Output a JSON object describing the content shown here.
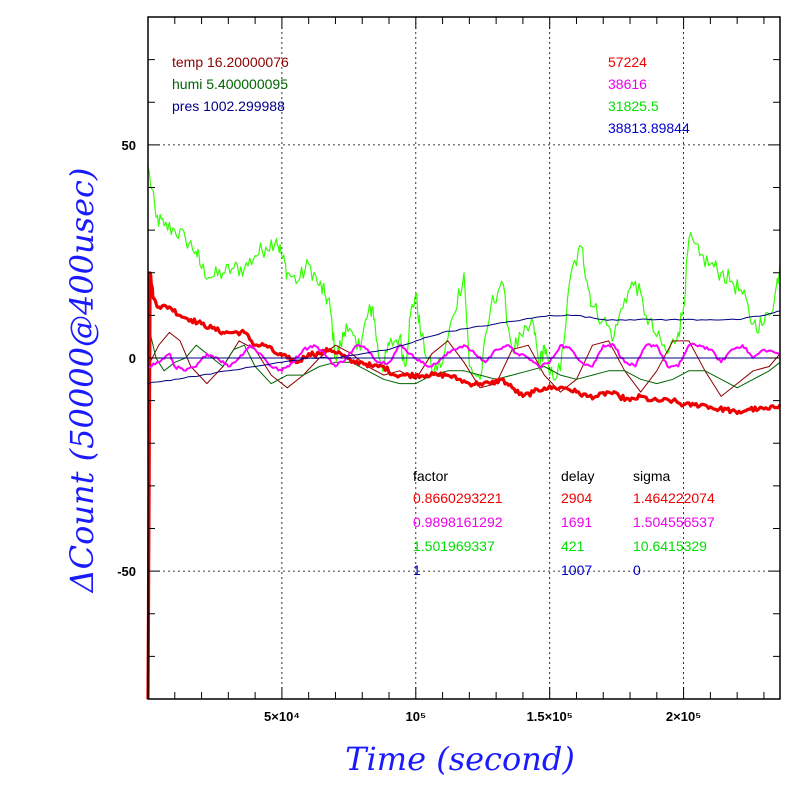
{
  "chart_data": {
    "type": "line",
    "xlabel": "Time (second)",
    "ylabel": "ΔCount (50000@400usec)",
    "xlim": [
      0,
      236000
    ],
    "ylim": [
      -80,
      80
    ],
    "x_ticks": [
      {
        "value": 50000,
        "label": "5×10⁴"
      },
      {
        "value": 100000,
        "label": "10⁵"
      },
      {
        "value": 150000,
        "label": "1.5×10⁵"
      },
      {
        "value": 200000,
        "label": "2×10⁵"
      }
    ],
    "y_ticks": [
      {
        "value": 50,
        "label": "50"
      },
      {
        "value": 0,
        "label": "0"
      },
      {
        "value": -50,
        "label": "-50"
      }
    ],
    "grid": true,
    "info_left": [
      {
        "text": "temp 16.20000076",
        "color": "#8b0000"
      },
      {
        "text": "humi 5.400000095",
        "color": "#006400"
      },
      {
        "text": "pres 1002.299988",
        "color": "#00008b"
      }
    ],
    "info_right": [
      {
        "text": "57224",
        "color": "#ee0000"
      },
      {
        "text": "38616",
        "color": "#ee00ee"
      },
      {
        "text": "31825.5",
        "color": "#00dd00"
      },
      {
        "text": "38813.89844",
        "color": "#0000cc"
      }
    ],
    "table": {
      "headers": [
        "factor",
        "delay",
        "sigma"
      ],
      "rows": [
        {
          "factor": "0.8660293221",
          "delay": "2904",
          "sigma": "1.464222074",
          "color": "#ee0000"
        },
        {
          "factor": "0.9898161292",
          "delay": "1691",
          "sigma": "1.504556537",
          "color": "#ee00ee"
        },
        {
          "factor": "1.501969337",
          "delay": "421",
          "sigma": "10.6415329",
          "color": "#00dd00"
        },
        {
          "factor": "1",
          "delay": "1007",
          "sigma": "0",
          "color": "#0000cc"
        }
      ]
    },
    "series": [
      {
        "color": "#33ff00",
        "width": 1.2,
        "noise": 2.2,
        "x": [
          0,
          3000,
          6000,
          10000,
          14000,
          18000,
          20000,
          24000,
          28000,
          32000,
          36000,
          40000,
          44000,
          48000,
          50000,
          52000,
          56000,
          60000,
          64000,
          66000,
          68000,
          70000,
          72000,
          74000,
          78000,
          80000,
          82000,
          84000,
          86000,
          88000,
          90000,
          94000,
          96000,
          98000,
          100000,
          102000,
          106000,
          110000,
          114000,
          118000,
          120000,
          124000,
          128000,
          132000,
          136000,
          140000,
          144000,
          146000,
          148000,
          150000,
          154000,
          158000,
          162000,
          164000,
          166000,
          170000,
          174000,
          178000,
          182000,
          186000,
          190000,
          194000,
          198000,
          200000,
          202000,
          206000,
          210000,
          214000,
          218000,
          222000,
          226000,
          230000,
          234000,
          236000
        ],
        "y": [
          45,
          33,
          31,
          30,
          28,
          25,
          21,
          19,
          20,
          21,
          21,
          24,
          26,
          28,
          24,
          20,
          18,
          22,
          17,
          15,
          12,
          0,
          3,
          8,
          2,
          5,
          10,
          12,
          1,
          -2,
          3,
          5,
          -2,
          10,
          15,
          5,
          -3,
          -1,
          10,
          20,
          -2,
          -5,
          12,
          18,
          2,
          5,
          8,
          -2,
          3,
          -4,
          -3,
          20,
          26,
          18,
          12,
          9,
          5,
          14,
          18,
          10,
          5,
          1,
          6,
          12,
          28,
          24,
          22,
          20,
          18,
          15,
          8,
          8,
          14,
          22
        ]
      },
      {
        "color": "#8b0000",
        "width": 1,
        "noise": 0,
        "x": [
          0,
          4000,
          8000,
          12000,
          16000,
          22000,
          28000,
          34000,
          40000,
          46000,
          52000,
          58000,
          64000,
          70000,
          76000,
          82000,
          88000,
          94000,
          100000,
          106000,
          112000,
          118000,
          124000,
          130000,
          136000,
          142000,
          148000,
          154000,
          160000,
          166000,
          172000,
          178000,
          184000,
          190000,
          196000,
          202000,
          208000,
          214000,
          220000,
          226000,
          232000,
          236000
        ],
        "y": [
          -2,
          3,
          6,
          4,
          -2,
          -6,
          -2,
          4,
          2,
          -4,
          -7,
          -4,
          0,
          3,
          1,
          -2,
          -4,
          -3,
          -5,
          1,
          4,
          -1,
          -7,
          -6,
          2,
          3,
          -4,
          -8,
          -5,
          3,
          4,
          -3,
          -8,
          -3,
          4,
          4,
          -3,
          -9,
          -6,
          -3,
          -2,
          1
        ]
      },
      {
        "color": "#006400",
        "width": 1,
        "noise": 0,
        "x": [
          0,
          3000,
          6000,
          10000,
          14000,
          18000,
          22000,
          28000,
          32000,
          36000,
          40000,
          46000,
          52000,
          58000,
          64000,
          70000,
          76000,
          82000,
          88000,
          94000,
          100000,
          106000,
          112000,
          118000,
          124000,
          130000,
          136000,
          142000,
          148000,
          154000,
          160000,
          166000,
          172000,
          178000,
          184000,
          190000,
          196000,
          202000,
          208000,
          214000,
          220000,
          226000,
          232000,
          236000
        ],
        "y": [
          8,
          0,
          -3,
          -1,
          0,
          3,
          1,
          -2,
          2,
          3,
          -2,
          -6,
          -4,
          -4,
          -2,
          -1,
          -1,
          -3,
          -5,
          -6,
          -6,
          -4,
          -3,
          -3,
          -4,
          -5,
          -4,
          -3,
          -2,
          -4,
          -5,
          -4,
          -3,
          -3,
          -5,
          -6,
          -5,
          -3,
          -3,
          -5,
          -7,
          -5,
          -3,
          -1
        ]
      },
      {
        "color": "#ee0000",
        "width": 3.2,
        "noise": 0.6,
        "x": [
          0,
          800,
          2000,
          4000,
          8000,
          12000,
          16000,
          20000,
          24000,
          28000,
          32000,
          36000,
          40000,
          44000,
          48000,
          52000,
          56000,
          60000,
          64000,
          68000,
          72000,
          76000,
          80000,
          84000,
          88000,
          92000,
          96000,
          100000,
          104000,
          108000,
          112000,
          116000,
          120000,
          124000,
          128000,
          132000,
          136000,
          140000,
          144000,
          148000,
          152000,
          156000,
          160000,
          164000,
          168000,
          172000,
          176000,
          180000,
          184000,
          188000,
          192000,
          196000,
          200000,
          204000,
          208000,
          212000,
          216000,
          220000,
          224000,
          228000,
          232000,
          236000
        ],
        "y": [
          -80,
          20,
          14,
          12,
          12,
          10,
          9,
          8,
          7,
          6,
          6,
          6,
          3,
          3,
          1,
          0,
          -1,
          1,
          1,
          2,
          1,
          -1,
          -1,
          -2,
          -2,
          -4,
          -4,
          -4,
          -4,
          -4,
          -4,
          -5,
          -6,
          -6,
          -6,
          -5,
          -7,
          -9,
          -8,
          -7,
          -7,
          -7,
          -8,
          -9,
          -9,
          -8,
          -9,
          -10,
          -9,
          -10,
          -10,
          -10,
          -11,
          -11,
          -11,
          -12,
          -12,
          -13,
          -12,
          -12,
          -12,
          -11
        ]
      },
      {
        "color": "#ff00ff",
        "width": 2,
        "noise": 0.4,
        "x": [
          0,
          4000,
          8000,
          10000,
          14000,
          18000,
          22000,
          26000,
          30000,
          34000,
          38000,
          42000,
          46000,
          50000,
          54000,
          58000,
          62000,
          66000,
          70000,
          74000,
          78000,
          82000,
          86000,
          90000,
          94000,
          98000,
          102000,
          106000,
          110000,
          114000,
          118000,
          122000,
          126000,
          130000,
          134000,
          138000,
          142000,
          146000,
          150000,
          154000,
          158000,
          162000,
          166000,
          170000,
          174000,
          178000,
          182000,
          186000,
          190000,
          194000,
          198000,
          202000,
          206000,
          210000,
          214000,
          218000,
          222000,
          226000,
          230000,
          236000
        ],
        "y": [
          -2,
          -1,
          1,
          -2,
          -3,
          -2,
          1,
          0,
          -2,
          0,
          3,
          1,
          -2,
          -3,
          -1,
          2,
          3,
          1,
          -2,
          0,
          3,
          2,
          -1,
          -1,
          3,
          1,
          -1,
          -2,
          0,
          2,
          3,
          1,
          -1,
          2,
          3,
          1,
          0,
          -2,
          -1,
          3,
          2,
          -1,
          -2,
          3,
          3,
          -1,
          -2,
          3,
          3,
          -2,
          -2,
          3,
          3,
          2,
          -1,
          2,
          3,
          0,
          2,
          1
        ]
      },
      {
        "color": "#000080",
        "width": 1,
        "noise": 0.15,
        "x": [
          0,
          10000,
          20000,
          30000,
          40000,
          50000,
          60000,
          70000,
          80000,
          90000,
          100000,
          110000,
          120000,
          130000,
          140000,
          150000,
          160000,
          170000,
          180000,
          190000,
          200000,
          210000,
          220000,
          230000,
          236000
        ],
        "y": [
          -6,
          -5,
          -4,
          -3,
          -2,
          -1,
          0,
          0,
          1,
          2,
          4,
          6,
          7,
          8,
          9,
          10,
          10,
          9,
          9,
          9,
          9,
          9,
          9,
          10,
          11
        ]
      },
      {
        "color": "#000080",
        "width": 1,
        "noise": 0,
        "x": [
          0,
          236000
        ],
        "y": [
          0,
          0
        ]
      }
    ]
  }
}
